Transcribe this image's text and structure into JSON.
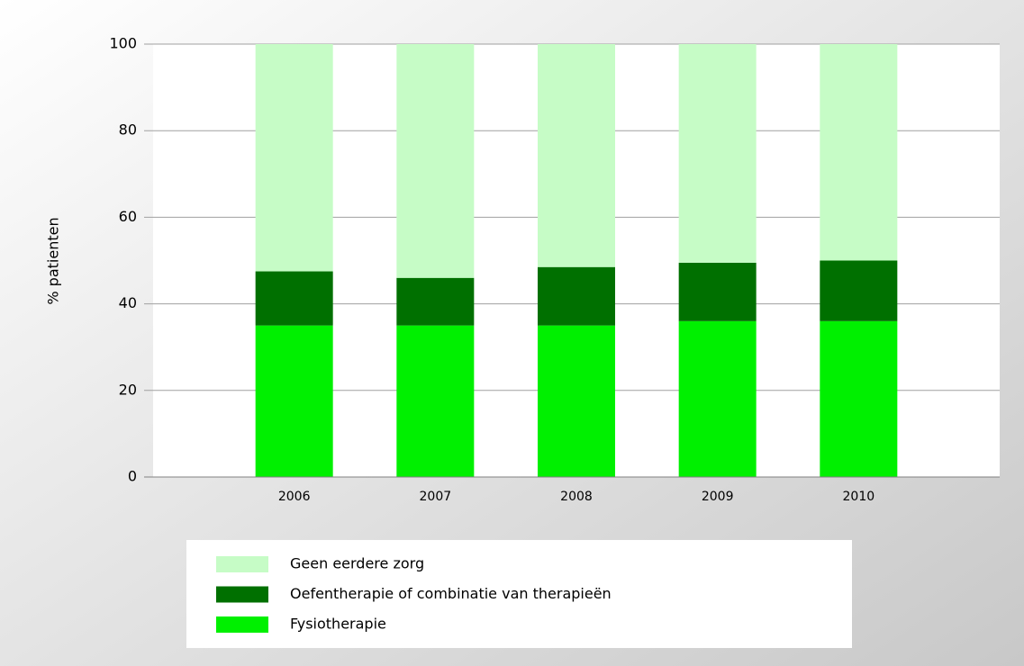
{
  "chart_data": {
    "type": "stacked-bar",
    "y_label": "% patienten",
    "categories": [
      "2006",
      "2007",
      "2008",
      "2009",
      "2010"
    ],
    "series": [
      {
        "name": "Fysiotherapie",
        "color": "#00f000",
        "values": [
          35,
          35,
          35,
          36,
          36
        ]
      },
      {
        "name": "Oefentherapie of combinatie van therapieën",
        "color": "#007000",
        "values": [
          12.5,
          11,
          13.5,
          13.5,
          14
        ]
      },
      {
        "name": "Geen eerdere zorg",
        "color": "#c6fcc6",
        "values": [
          52.5,
          54,
          51.5,
          50.5,
          50
        ]
      }
    ],
    "ylim": [
      0,
      100
    ],
    "yticks": [
      0,
      20,
      40,
      60,
      80,
      100
    ],
    "grid": true
  }
}
